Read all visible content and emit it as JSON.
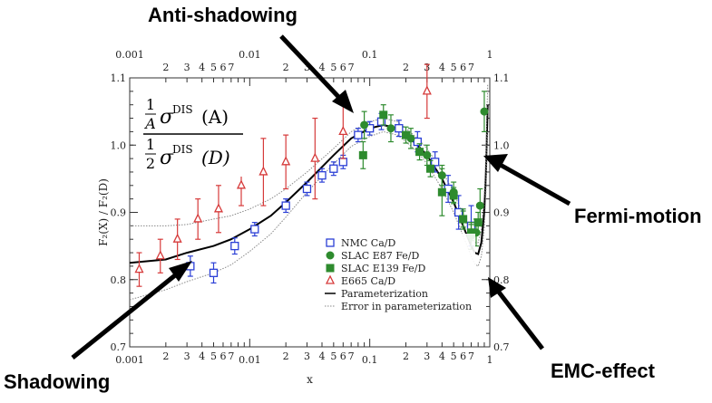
{
  "annotations": {
    "anti_shadowing": "Anti-shadowing",
    "fermi_motion": "Fermi-motion",
    "shadowing": "Shadowing",
    "emc_effect": "EMC-effect"
  },
  "formula": {
    "num_coef": "1",
    "num_den": "A",
    "num_sigma": "σ",
    "num_sup": "DIS",
    "num_arg": "(A)",
    "den_coef": "1",
    "den_den": "2",
    "den_sigma": "σ",
    "den_sup": "DIS",
    "den_arg": "(D)"
  },
  "chart_data": {
    "type": "scatter",
    "xlabel": "x",
    "ylabel": "F₂(X) / F₂(D)",
    "x_scale": "log",
    "xlim": [
      0.001,
      1
    ],
    "ylim": [
      0.7,
      1.1
    ],
    "x_decade_labels": [
      "0.001",
      "0.01",
      "0.1",
      "1"
    ],
    "x_minor_labels": [
      "2",
      "3",
      "4",
      "5",
      "6",
      "7"
    ],
    "y_tick_labels": [
      "0.7",
      "0.8",
      "0.9",
      "1.0",
      "1.1"
    ],
    "legend_position": "bottom-right",
    "colors": {
      "nmc": "#2b3fd6",
      "slac_e87": "#2e8b2e",
      "slac_e139": "#2e8b2e",
      "e665": "#d63a3a",
      "param": "#000000",
      "error_band": "#888888"
    },
    "series": [
      {
        "name": "NMC Ca/D",
        "marker": "open-square",
        "points": [
          {
            "x": 0.0032,
            "y": 0.82,
            "err": 0.015
          },
          {
            "x": 0.005,
            "y": 0.81,
            "err": 0.015
          },
          {
            "x": 0.0075,
            "y": 0.85,
            "err": 0.012
          },
          {
            "x": 0.011,
            "y": 0.875,
            "err": 0.01
          },
          {
            "x": 0.02,
            "y": 0.91,
            "err": 0.01
          },
          {
            "x": 0.03,
            "y": 0.935,
            "err": 0.01
          },
          {
            "x": 0.04,
            "y": 0.955,
            "err": 0.01
          },
          {
            "x": 0.05,
            "y": 0.965,
            "err": 0.01
          },
          {
            "x": 0.06,
            "y": 0.975,
            "err": 0.01
          },
          {
            "x": 0.08,
            "y": 1.015,
            "err": 0.01
          },
          {
            "x": 0.1,
            "y": 1.025,
            "err": 0.01
          },
          {
            "x": 0.125,
            "y": 1.035,
            "err": 0.012
          },
          {
            "x": 0.175,
            "y": 1.025,
            "err": 0.012
          },
          {
            "x": 0.25,
            "y": 1.005,
            "err": 0.015
          },
          {
            "x": 0.35,
            "y": 0.975,
            "err": 0.015
          },
          {
            "x": 0.45,
            "y": 0.935,
            "err": 0.02
          },
          {
            "x": 0.55,
            "y": 0.9,
            "err": 0.025
          },
          {
            "x": 0.7,
            "y": 0.88,
            "err": 0.03
          }
        ]
      },
      {
        "name": "SLAC E87 Fe/D",
        "marker": "filled-circle",
        "points": [
          {
            "x": 0.09,
            "y": 1.03,
            "err": 0.02
          },
          {
            "x": 0.15,
            "y": 1.025,
            "err": 0.02
          },
          {
            "x": 0.22,
            "y": 1.01,
            "err": 0.015
          },
          {
            "x": 0.3,
            "y": 0.985,
            "err": 0.015
          },
          {
            "x": 0.4,
            "y": 0.955,
            "err": 0.015
          },
          {
            "x": 0.5,
            "y": 0.93,
            "err": 0.015
          },
          {
            "x": 0.6,
            "y": 0.89,
            "err": 0.015
          },
          {
            "x": 0.7,
            "y": 0.865,
            "err": 0.02
          },
          {
            "x": 0.77,
            "y": 0.87,
            "err": 0.02
          },
          {
            "x": 0.83,
            "y": 0.91,
            "err": 0.025
          },
          {
            "x": 0.9,
            "y": 1.05,
            "err": 0.03
          }
        ]
      },
      {
        "name": "SLAC E139 Fe/D",
        "marker": "filled-square",
        "points": [
          {
            "x": 0.088,
            "y": 0.985,
            "err": 0.02
          },
          {
            "x": 0.13,
            "y": 1.045,
            "err": 0.015
          },
          {
            "x": 0.2,
            "y": 1.015,
            "err": 0.012
          },
          {
            "x": 0.26,
            "y": 0.99,
            "err": 0.012
          },
          {
            "x": 0.32,
            "y": 0.965,
            "err": 0.012
          },
          {
            "x": 0.4,
            "y": 0.93,
            "err": 0.035
          },
          {
            "x": 0.5,
            "y": 0.925,
            "err": 0.012
          },
          {
            "x": 0.6,
            "y": 0.89,
            "err": 0.012
          },
          {
            "x": 0.7,
            "y": 0.87,
            "err": 0.012
          },
          {
            "x": 0.8,
            "y": 0.885,
            "err": 0.015
          }
        ]
      },
      {
        "name": "E665 Ca/D",
        "marker": "open-triangle",
        "points": [
          {
            "x": 0.0012,
            "y": 0.815,
            "err": 0.025
          },
          {
            "x": 0.0018,
            "y": 0.835,
            "err": 0.025
          },
          {
            "x": 0.0025,
            "y": 0.86,
            "err": 0.03
          },
          {
            "x": 0.0037,
            "y": 0.89,
            "err": 0.03
          },
          {
            "x": 0.0055,
            "y": 0.905,
            "err": 0.035
          },
          {
            "x": 0.0085,
            "y": 0.94,
            "err": 0.03
          },
          {
            "x": 0.013,
            "y": 0.96,
            "err": 0.05
          },
          {
            "x": 0.02,
            "y": 0.975,
            "err": 0.04
          },
          {
            "x": 0.035,
            "y": 0.98,
            "err": 0.06
          },
          {
            "x": 0.06,
            "y": 1.02,
            "err": 0.04
          },
          {
            "x": 0.3,
            "y": 1.08,
            "err": 0.04
          }
        ]
      }
    ],
    "curves": [
      {
        "name": "Parameterization",
        "style": "solid",
        "x": [
          0.001,
          0.002,
          0.003,
          0.005,
          0.007,
          0.01,
          0.015,
          0.02,
          0.03,
          0.05,
          0.07,
          0.1,
          0.13,
          0.17,
          0.2,
          0.25,
          0.3,
          0.4,
          0.5,
          0.6,
          0.7,
          0.75,
          0.8,
          0.85,
          0.9,
          0.93,
          0.96
        ],
        "y": [
          0.825,
          0.83,
          0.84,
          0.85,
          0.86,
          0.875,
          0.895,
          0.915,
          0.945,
          0.985,
          1.01,
          1.025,
          1.03,
          1.025,
          1.015,
          1.0,
          0.985,
          0.95,
          0.915,
          0.88,
          0.85,
          0.84,
          0.838,
          0.855,
          0.9,
          0.96,
          1.06
        ]
      },
      {
        "name": "Error in parameterization",
        "style": "dotted-upper",
        "x": [
          0.001,
          0.002,
          0.003,
          0.005,
          0.007,
          0.01,
          0.015,
          0.02,
          0.03,
          0.05,
          0.07,
          0.1,
          0.13,
          0.17,
          0.2,
          0.25,
          0.3,
          0.4,
          0.5,
          0.6,
          0.7,
          0.75,
          0.8,
          0.85,
          0.9,
          0.93,
          0.96
        ],
        "y": [
          0.88,
          0.88,
          0.882,
          0.89,
          0.895,
          0.905,
          0.92,
          0.935,
          0.96,
          0.995,
          1.02,
          1.035,
          1.04,
          1.035,
          1.025,
          1.01,
          0.995,
          0.962,
          0.93,
          0.895,
          0.865,
          0.855,
          0.855,
          0.875,
          0.925,
          0.99,
          1.09
        ]
      },
      {
        "name": "Error in parameterization",
        "style": "dotted-lower",
        "x": [
          0.001,
          0.002,
          0.003,
          0.005,
          0.007,
          0.01,
          0.015,
          0.02,
          0.03,
          0.05,
          0.07,
          0.1,
          0.13,
          0.17,
          0.2,
          0.25,
          0.3,
          0.4,
          0.5,
          0.6,
          0.7,
          0.75,
          0.8,
          0.85,
          0.9,
          0.93,
          0.96
        ],
        "y": [
          0.77,
          0.785,
          0.797,
          0.81,
          0.822,
          0.842,
          0.868,
          0.893,
          0.93,
          0.972,
          0.998,
          1.013,
          1.02,
          1.015,
          1.005,
          0.99,
          0.972,
          0.935,
          0.9,
          0.865,
          0.835,
          0.823,
          0.82,
          0.835,
          0.875,
          0.93,
          1.02
        ]
      }
    ],
    "legend": [
      {
        "label": "NMC Ca/D",
        "marker": "open-square",
        "color": "#2b3fd6"
      },
      {
        "label": "SLAC E87 Fe/D",
        "marker": "filled-circle",
        "color": "#2e8b2e"
      },
      {
        "label": "SLAC E139 Fe/D",
        "marker": "filled-square",
        "color": "#2e8b2e"
      },
      {
        "label": "E665 Ca/D",
        "marker": "open-triangle",
        "color": "#d63a3a"
      },
      {
        "label": "Parameterization",
        "marker": "line-solid",
        "color": "#000000"
      },
      {
        "label": "Error in parameterization",
        "marker": "line-dotted",
        "color": "#888888"
      }
    ]
  }
}
